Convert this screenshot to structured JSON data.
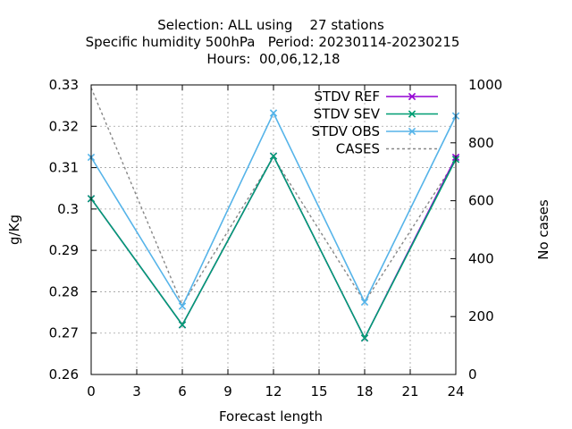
{
  "chart_data": {
    "type": "line",
    "title_lines": [
      "Selection: ALL using    27 stations",
      "Specific humidity 500hPa   Period: 20230114-20230215",
      "Hours:  00,06,12,18"
    ],
    "xlabel": "Forecast length",
    "ylabel": "g/Kg",
    "y2label": "No cases",
    "xlim": [
      0,
      24
    ],
    "ylim": [
      0.26,
      0.33
    ],
    "y2lim": [
      0,
      1000
    ],
    "xticks": [
      0,
      3,
      6,
      9,
      12,
      15,
      18,
      21,
      24
    ],
    "yticks": [
      0.26,
      0.27,
      0.28,
      0.29,
      0.3,
      0.31,
      0.32,
      0.33
    ],
    "ytick_labels": [
      "0.26",
      "0.27",
      "0.28",
      "0.29",
      "0.3",
      "0.31",
      "0.32",
      "0.33"
    ],
    "y2ticks": [
      0,
      200,
      400,
      600,
      800,
      1000
    ],
    "grid": true,
    "legend_position": "top-right",
    "series": [
      {
        "name": "STDV REF",
        "axis": "y",
        "color": "#9400d3",
        "marker": "x",
        "x": [
          0,
          6,
          12,
          18,
          24
        ],
        "values": [
          0.3025,
          0.272,
          0.3128,
          0.2688,
          0.3125
        ]
      },
      {
        "name": "STDV SEV",
        "axis": "y",
        "color": "#009e73",
        "marker": "x",
        "x": [
          0,
          6,
          12,
          18,
          24
        ],
        "values": [
          0.3025,
          0.272,
          0.3128,
          0.2688,
          0.312
        ]
      },
      {
        "name": "STDV OBS",
        "axis": "y",
        "color": "#56b4e9",
        "marker": "x",
        "x": [
          0,
          6,
          12,
          18,
          24
        ],
        "values": [
          0.3125,
          0.2765,
          0.3232,
          0.2775,
          0.3225
        ]
      },
      {
        "name": "CASES",
        "axis": "y2",
        "color": "#888888",
        "dashed": true,
        "x": [
          0,
          6,
          12,
          18,
          24
        ],
        "values": [
          990,
          240,
          750,
          250,
          740
        ]
      }
    ]
  }
}
